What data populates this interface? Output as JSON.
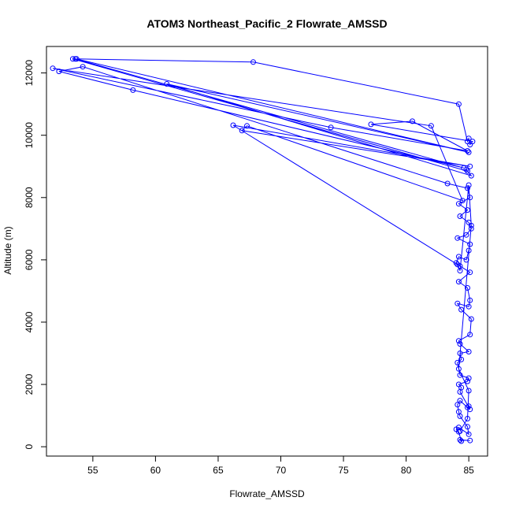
{
  "chart_data": {
    "type": "line",
    "title": "ATOM3 Northeast_Pacific_2 Flowrate_AMSSD",
    "xlabel": "Flowrate_AMSSD",
    "ylabel": "Altitude (m)",
    "xlim": [
      51.3,
      86.5
    ],
    "ylim": [
      -300,
      12850
    ],
    "xticks": [
      55,
      60,
      65,
      70,
      75,
      80,
      85
    ],
    "yticks": [
      0,
      2000,
      4000,
      6000,
      8000,
      10000,
      12000
    ],
    "grid": false,
    "series": [
      {
        "color": "#0000ff",
        "marker": "open-circle",
        "points": [
          [
            85.1,
            200
          ],
          [
            84.3,
            220
          ],
          [
            84.4,
            180
          ],
          [
            84.2,
            480
          ],
          [
            84.0,
            560
          ],
          [
            84.2,
            620
          ],
          [
            85.0,
            400
          ],
          [
            84.9,
            640
          ],
          [
            84.3,
            980
          ],
          [
            84.2,
            1120
          ],
          [
            84.1,
            1350
          ],
          [
            84.3,
            1480
          ],
          [
            84.9,
            1260
          ],
          [
            85.0,
            1300
          ],
          [
            85.1,
            1200
          ],
          [
            84.3,
            1760
          ],
          [
            84.4,
            1900
          ],
          [
            84.2,
            2000
          ],
          [
            84.9,
            2100
          ],
          [
            85.0,
            2200
          ],
          [
            84.3,
            2300
          ],
          [
            84.1,
            2700
          ],
          [
            84.4,
            2800
          ],
          [
            84.3,
            3000
          ],
          [
            85.0,
            3050
          ],
          [
            84.3,
            3300
          ],
          [
            84.2,
            3400
          ],
          [
            85.1,
            3600
          ],
          [
            85.2,
            4100
          ],
          [
            84.4,
            4400
          ],
          [
            84.1,
            4600
          ],
          [
            85.0,
            4500
          ],
          [
            85.1,
            4700
          ],
          [
            84.9,
            5100
          ],
          [
            84.2,
            5300
          ],
          [
            85.1,
            5600
          ],
          [
            84.3,
            5800
          ],
          [
            84.0,
            5900
          ],
          [
            84.2,
            6100
          ],
          [
            84.8,
            6000
          ],
          [
            85.0,
            6300
          ],
          [
            85.1,
            6500
          ],
          [
            84.1,
            6700
          ],
          [
            84.8,
            6800
          ],
          [
            85.2,
            7000
          ],
          [
            85.0,
            7200
          ],
          [
            84.3,
            7400
          ],
          [
            84.9,
            7600
          ],
          [
            84.2,
            7800
          ],
          [
            85.1,
            8000
          ],
          [
            84.9,
            8300
          ],
          [
            83.3,
            8450
          ],
          [
            54.2,
            12200
          ],
          [
            52.3,
            12050
          ],
          [
            58.2,
            11450
          ],
          [
            84.6,
            8950
          ],
          [
            53.6,
            12450
          ],
          [
            53.4,
            12450
          ],
          [
            84.9,
            8850
          ],
          [
            84.8,
            8900
          ],
          [
            85.2,
            8700
          ],
          [
            60.9,
            11650
          ],
          [
            85.0,
            9450
          ],
          [
            53.7,
            12450
          ],
          [
            67.8,
            12350
          ],
          [
            84.2,
            11000
          ],
          [
            84.9,
            9800
          ],
          [
            85.0,
            9900
          ],
          [
            85.1,
            9700
          ],
          [
            85.3,
            9800
          ],
          [
            77.2,
            10350
          ],
          [
            80.5,
            10450
          ],
          [
            84.9,
            9500
          ],
          [
            74.0,
            10250
          ],
          [
            51.8,
            12150
          ],
          [
            82.0,
            10300
          ],
          [
            84.5,
            7900
          ],
          [
            67.3,
            10300
          ],
          [
            66.9,
            10150
          ],
          [
            85.1,
            9000
          ],
          [
            66.2,
            10320
          ],
          [
            84.1,
            5850
          ],
          [
            84.3,
            5650
          ],
          [
            85.0,
            8400
          ],
          [
            85.2,
            7100
          ],
          [
            84.2,
            2500
          ],
          [
            85.0,
            1800
          ],
          [
            84.9,
            900
          ],
          [
            84.3,
            500
          ]
        ]
      }
    ]
  }
}
